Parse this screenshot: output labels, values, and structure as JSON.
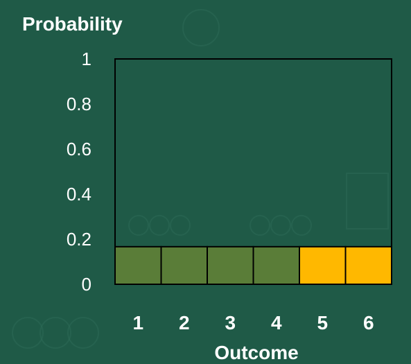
{
  "chart_data": {
    "type": "bar",
    "title": "",
    "xlabel": "Outcome",
    "ylabel": "Probability",
    "ylim": [
      0,
      1
    ],
    "yticks": [
      "0",
      "0.2",
      "0.4",
      "0.6",
      "0.8",
      "1"
    ],
    "categories": [
      "1",
      "2",
      "3",
      "4",
      "5",
      "6"
    ],
    "values": [
      0.1667,
      0.1667,
      0.1667,
      0.1667,
      0.1667,
      0.1667
    ],
    "bar_colors": [
      "#5a7d38",
      "#5a7d38",
      "#5a7d38",
      "#5a7d38",
      "#ffb800",
      "#ffb800"
    ],
    "grid": false,
    "legend": "none"
  },
  "colors": {
    "background": "#1f5a47",
    "axis": "#000000",
    "text": "#ffffff"
  }
}
